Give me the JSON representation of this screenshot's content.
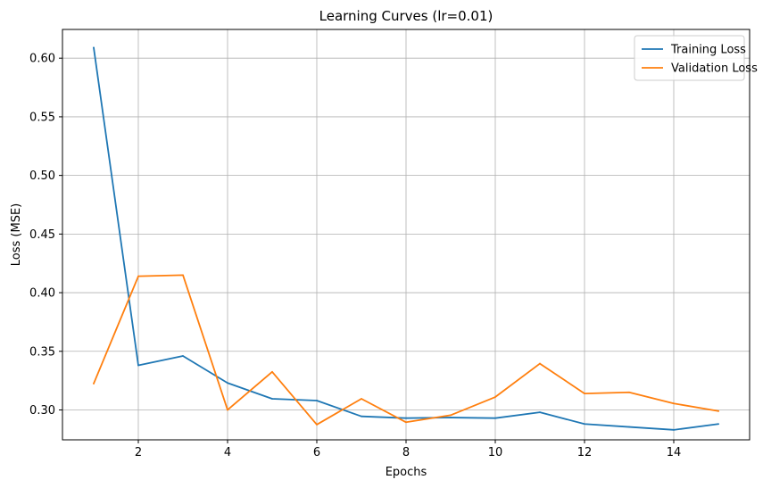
{
  "chart_data": {
    "type": "line",
    "title": "Learning Curves (lr=0.01)",
    "xlabel": "Epochs",
    "ylabel": "Loss (MSE)",
    "xlim": [
      0.3,
      15.7
    ],
    "ylim": [
      0.2745,
      0.6245
    ],
    "xticks": [
      2,
      4,
      6,
      8,
      10,
      12,
      14
    ],
    "yticks": [
      0.3,
      0.35,
      0.4,
      0.45,
      0.5,
      0.55,
      0.6
    ],
    "grid": true,
    "legend_position": "top-right",
    "x": [
      1,
      2,
      3,
      4,
      5,
      6,
      7,
      8,
      9,
      10,
      11,
      12,
      13,
      14,
      15
    ],
    "series": [
      {
        "name": "Training Loss",
        "color": "#1f77b4",
        "values": [
          0.609,
          0.338,
          0.346,
          0.323,
          0.3095,
          0.308,
          0.2945,
          0.293,
          0.2935,
          0.293,
          0.298,
          0.288,
          0.2855,
          0.283,
          0.288
        ]
      },
      {
        "name": "Validation Loss",
        "color": "#ff7f0e",
        "values": [
          0.3225,
          0.414,
          0.415,
          0.3,
          0.3325,
          0.2875,
          0.3095,
          0.2895,
          0.2955,
          0.311,
          0.3395,
          0.314,
          0.315,
          0.3055,
          0.299
        ]
      }
    ]
  }
}
